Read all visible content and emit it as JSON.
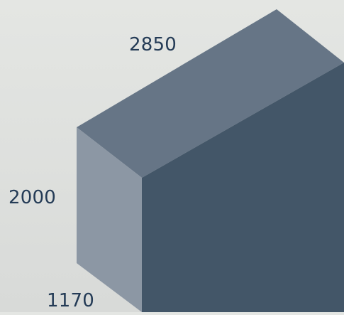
{
  "dimensions": {
    "length": "2850",
    "height": "2000",
    "depth": "1170"
  },
  "colors": {
    "background": "#dfe1de",
    "top_face": "#667586",
    "front_face": "#8c97a4",
    "side_face": "#435668",
    "label_text": "#243b56"
  }
}
